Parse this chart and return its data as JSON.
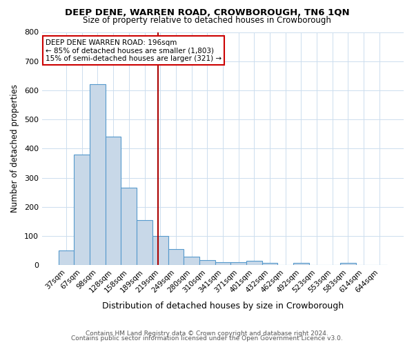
{
  "title": "DEEP DENE, WARREN ROAD, CROWBOROUGH, TN6 1QN",
  "subtitle": "Size of property relative to detached houses in Crowborough",
  "xlabel": "Distribution of detached houses by size in Crowborough",
  "ylabel": "Number of detached properties",
  "footnote1": "Contains HM Land Registry data © Crown copyright and database right 2024.",
  "footnote2": "Contains public sector information licensed under the Open Government Licence v3.0.",
  "bin_labels": [
    "37sqm",
    "67sqm",
    "98sqm",
    "128sqm",
    "158sqm",
    "189sqm",
    "219sqm",
    "249sqm",
    "280sqm",
    "310sqm",
    "341sqm",
    "371sqm",
    "401sqm",
    "432sqm",
    "462sqm",
    "492sqm",
    "523sqm",
    "553sqm",
    "583sqm",
    "614sqm",
    "644sqm"
  ],
  "bar_heights": [
    50,
    380,
    620,
    440,
    265,
    155,
    100,
    55,
    30,
    18,
    10,
    10,
    15,
    8,
    0,
    8,
    0,
    0,
    7,
    0,
    0
  ],
  "bar_color": "#c8d8e8",
  "bar_edge_color": "#5599cc",
  "red_line_x": 5.85,
  "annotation_lines": [
    "DEEP DENE WARREN ROAD: 196sqm",
    "← 85% of detached houses are smaller (1,803)",
    "15% of semi-detached houses are larger (321) →"
  ],
  "annotation_box_color": "#cc0000",
  "ylim": [
    0,
    800
  ],
  "yticks": [
    0,
    100,
    200,
    300,
    400,
    500,
    600,
    700,
    800
  ],
  "background_color": "#ffffff",
  "grid_color": "#ccddee"
}
